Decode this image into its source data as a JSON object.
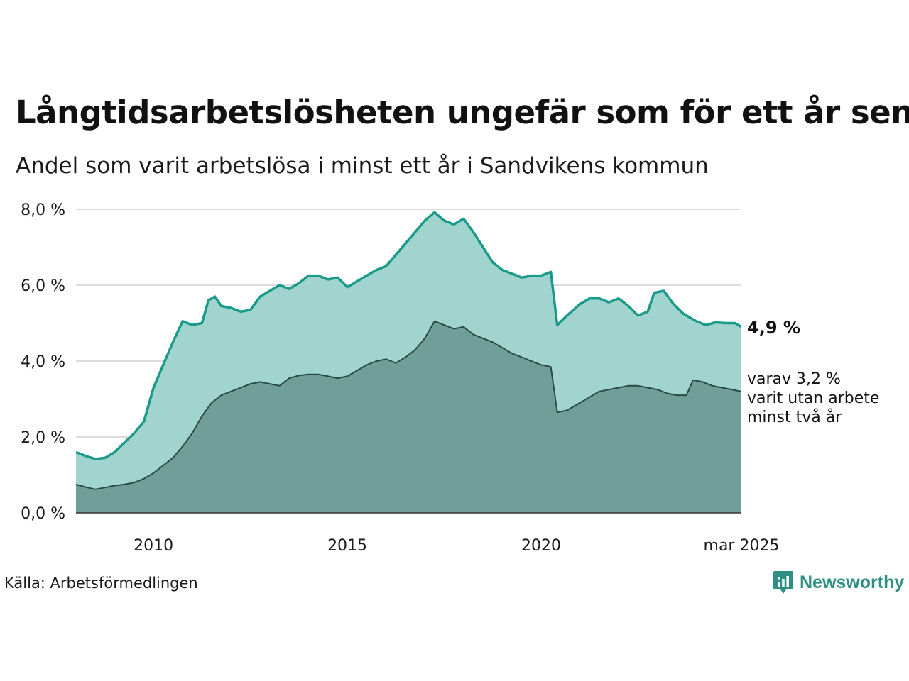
{
  "title": "Långtidsarbetslösheten ungefär som för ett år sen",
  "subtitle": "Andel som varit arbetslösa i minst ett år i Sandvikens kommun",
  "source": "Källa: Arbetsförmedlingen",
  "brand": "Newsworthy",
  "colors": {
    "outer_fill": "#a1d4cf",
    "outer_line": "#1a9a88",
    "inner_fill": "#6f9f98",
    "inner_line": "#2b4a45",
    "grid": "#dcdcdc"
  },
  "chart_data": {
    "type": "area",
    "title": "Långtidsarbetslösheten ungefär som för ett år sen",
    "subtitle": "Andel som varit arbetslösa i minst ett år i Sandvikens kommun",
    "y_axis": {
      "range": [
        0,
        8
      ],
      "ticks": [
        "0,0 %",
        "2,0 %",
        "4,0 %",
        "6,0 %",
        "8,0 %"
      ],
      "tick_values": [
        0,
        2,
        4,
        6,
        8
      ]
    },
    "x_axis": {
      "range": [
        "2008-01",
        "2025-03"
      ],
      "ticks": [
        "2010",
        "2015",
        "2020",
        "mar 2025"
      ],
      "tick_values": [
        "2010-01",
        "2015-01",
        "2020-01",
        "2025-03"
      ]
    },
    "grid": true,
    "series": [
      {
        "name": "minst ett år",
        "end_label": "4,9 %",
        "points": [
          [
            "2008-01",
            1.6
          ],
          [
            "2008-04",
            1.5
          ],
          [
            "2008-07",
            1.42
          ],
          [
            "2008-10",
            1.45
          ],
          [
            "2009-01",
            1.6
          ],
          [
            "2009-04",
            1.85
          ],
          [
            "2009-07",
            2.1
          ],
          [
            "2009-10",
            2.4
          ],
          [
            "2010-01",
            3.3
          ],
          [
            "2010-04",
            3.9
          ],
          [
            "2010-07",
            4.5
          ],
          [
            "2010-10",
            5.05
          ],
          [
            "2011-01",
            4.95
          ],
          [
            "2011-04",
            5.0
          ],
          [
            "2011-06",
            5.6
          ],
          [
            "2011-08",
            5.7
          ],
          [
            "2011-10",
            5.45
          ],
          [
            "2012-01",
            5.4
          ],
          [
            "2012-04",
            5.3
          ],
          [
            "2012-07",
            5.35
          ],
          [
            "2012-10",
            5.7
          ],
          [
            "2013-01",
            5.85
          ],
          [
            "2013-04",
            6.0
          ],
          [
            "2013-07",
            5.9
          ],
          [
            "2013-10",
            6.05
          ],
          [
            "2014-01",
            6.25
          ],
          [
            "2014-04",
            6.25
          ],
          [
            "2014-07",
            6.15
          ],
          [
            "2014-10",
            6.2
          ],
          [
            "2015-01",
            5.95
          ],
          [
            "2015-04",
            6.1
          ],
          [
            "2015-07",
            6.25
          ],
          [
            "2015-10",
            6.4
          ],
          [
            "2016-01",
            6.5
          ],
          [
            "2016-04",
            6.8
          ],
          [
            "2016-07",
            7.1
          ],
          [
            "2016-10",
            7.4
          ],
          [
            "2017-01",
            7.7
          ],
          [
            "2017-04",
            7.92
          ],
          [
            "2017-07",
            7.7
          ],
          [
            "2017-10",
            7.6
          ],
          [
            "2018-01",
            7.75
          ],
          [
            "2018-04",
            7.4
          ],
          [
            "2018-07",
            7.0
          ],
          [
            "2018-10",
            6.6
          ],
          [
            "2019-01",
            6.4
          ],
          [
            "2019-04",
            6.3
          ],
          [
            "2019-07",
            6.2
          ],
          [
            "2019-10",
            6.25
          ],
          [
            "2020-01",
            6.25
          ],
          [
            "2020-04",
            6.35
          ],
          [
            "2020-06",
            4.95
          ],
          [
            "2020-09",
            5.2
          ],
          [
            "2021-01",
            5.5
          ],
          [
            "2021-04",
            5.65
          ],
          [
            "2021-07",
            5.65
          ],
          [
            "2021-10",
            5.55
          ],
          [
            "2022-01",
            5.65
          ],
          [
            "2022-04",
            5.45
          ],
          [
            "2022-07",
            5.2
          ],
          [
            "2022-10",
            5.3
          ],
          [
            "2022-12",
            5.8
          ],
          [
            "2023-03",
            5.85
          ],
          [
            "2023-06",
            5.5
          ],
          [
            "2023-09",
            5.25
          ],
          [
            "2024-01",
            5.05
          ],
          [
            "2024-04",
            4.95
          ],
          [
            "2024-07",
            5.02
          ],
          [
            "2024-10",
            5.0
          ],
          [
            "2025-01",
            5.0
          ],
          [
            "2025-03",
            4.9
          ]
        ]
      },
      {
        "name": "varav minst två år",
        "end_label": [
          "varav 3,2 %",
          "varit utan arbete",
          "minst två år"
        ],
        "points": [
          [
            "2008-01",
            0.75
          ],
          [
            "2008-04",
            0.68
          ],
          [
            "2008-07",
            0.62
          ],
          [
            "2008-10",
            0.67
          ],
          [
            "2009-01",
            0.72
          ],
          [
            "2009-04",
            0.75
          ],
          [
            "2009-07",
            0.8
          ],
          [
            "2009-10",
            0.9
          ],
          [
            "2010-01",
            1.05
          ],
          [
            "2010-04",
            1.25
          ],
          [
            "2010-07",
            1.45
          ],
          [
            "2010-10",
            1.75
          ],
          [
            "2011-01",
            2.1
          ],
          [
            "2011-04",
            2.55
          ],
          [
            "2011-07",
            2.9
          ],
          [
            "2011-10",
            3.1
          ],
          [
            "2012-01",
            3.2
          ],
          [
            "2012-04",
            3.3
          ],
          [
            "2012-07",
            3.4
          ],
          [
            "2012-10",
            3.45
          ],
          [
            "2013-01",
            3.4
          ],
          [
            "2013-04",
            3.35
          ],
          [
            "2013-07",
            3.55
          ],
          [
            "2013-10",
            3.62
          ],
          [
            "2014-01",
            3.65
          ],
          [
            "2014-04",
            3.65
          ],
          [
            "2014-07",
            3.6
          ],
          [
            "2014-10",
            3.55
          ],
          [
            "2015-01",
            3.6
          ],
          [
            "2015-04",
            3.75
          ],
          [
            "2015-07",
            3.9
          ],
          [
            "2015-10",
            4.0
          ],
          [
            "2016-01",
            4.05
          ],
          [
            "2016-04",
            3.95
          ],
          [
            "2016-07",
            4.1
          ],
          [
            "2016-10",
            4.3
          ],
          [
            "2017-01",
            4.6
          ],
          [
            "2017-04",
            5.05
          ],
          [
            "2017-07",
            4.95
          ],
          [
            "2017-10",
            4.85
          ],
          [
            "2018-01",
            4.9
          ],
          [
            "2018-04",
            4.7
          ],
          [
            "2018-07",
            4.6
          ],
          [
            "2018-10",
            4.5
          ],
          [
            "2019-01",
            4.35
          ],
          [
            "2019-04",
            4.2
          ],
          [
            "2019-07",
            4.1
          ],
          [
            "2019-10",
            4.0
          ],
          [
            "2020-01",
            3.9
          ],
          [
            "2020-04",
            3.85
          ],
          [
            "2020-06",
            2.65
          ],
          [
            "2020-09",
            2.7
          ],
          [
            "2021-01",
            2.9
          ],
          [
            "2021-04",
            3.05
          ],
          [
            "2021-07",
            3.2
          ],
          [
            "2021-10",
            3.25
          ],
          [
            "2022-01",
            3.3
          ],
          [
            "2022-04",
            3.35
          ],
          [
            "2022-07",
            3.35
          ],
          [
            "2022-10",
            3.3
          ],
          [
            "2023-01",
            3.25
          ],
          [
            "2023-04",
            3.15
          ],
          [
            "2023-07",
            3.1
          ],
          [
            "2023-10",
            3.1
          ],
          [
            "2023-12",
            3.5
          ],
          [
            "2024-03",
            3.45
          ],
          [
            "2024-06",
            3.35
          ],
          [
            "2024-09",
            3.3
          ],
          [
            "2024-12",
            3.25
          ],
          [
            "2025-03",
            3.2
          ]
        ]
      }
    ]
  }
}
